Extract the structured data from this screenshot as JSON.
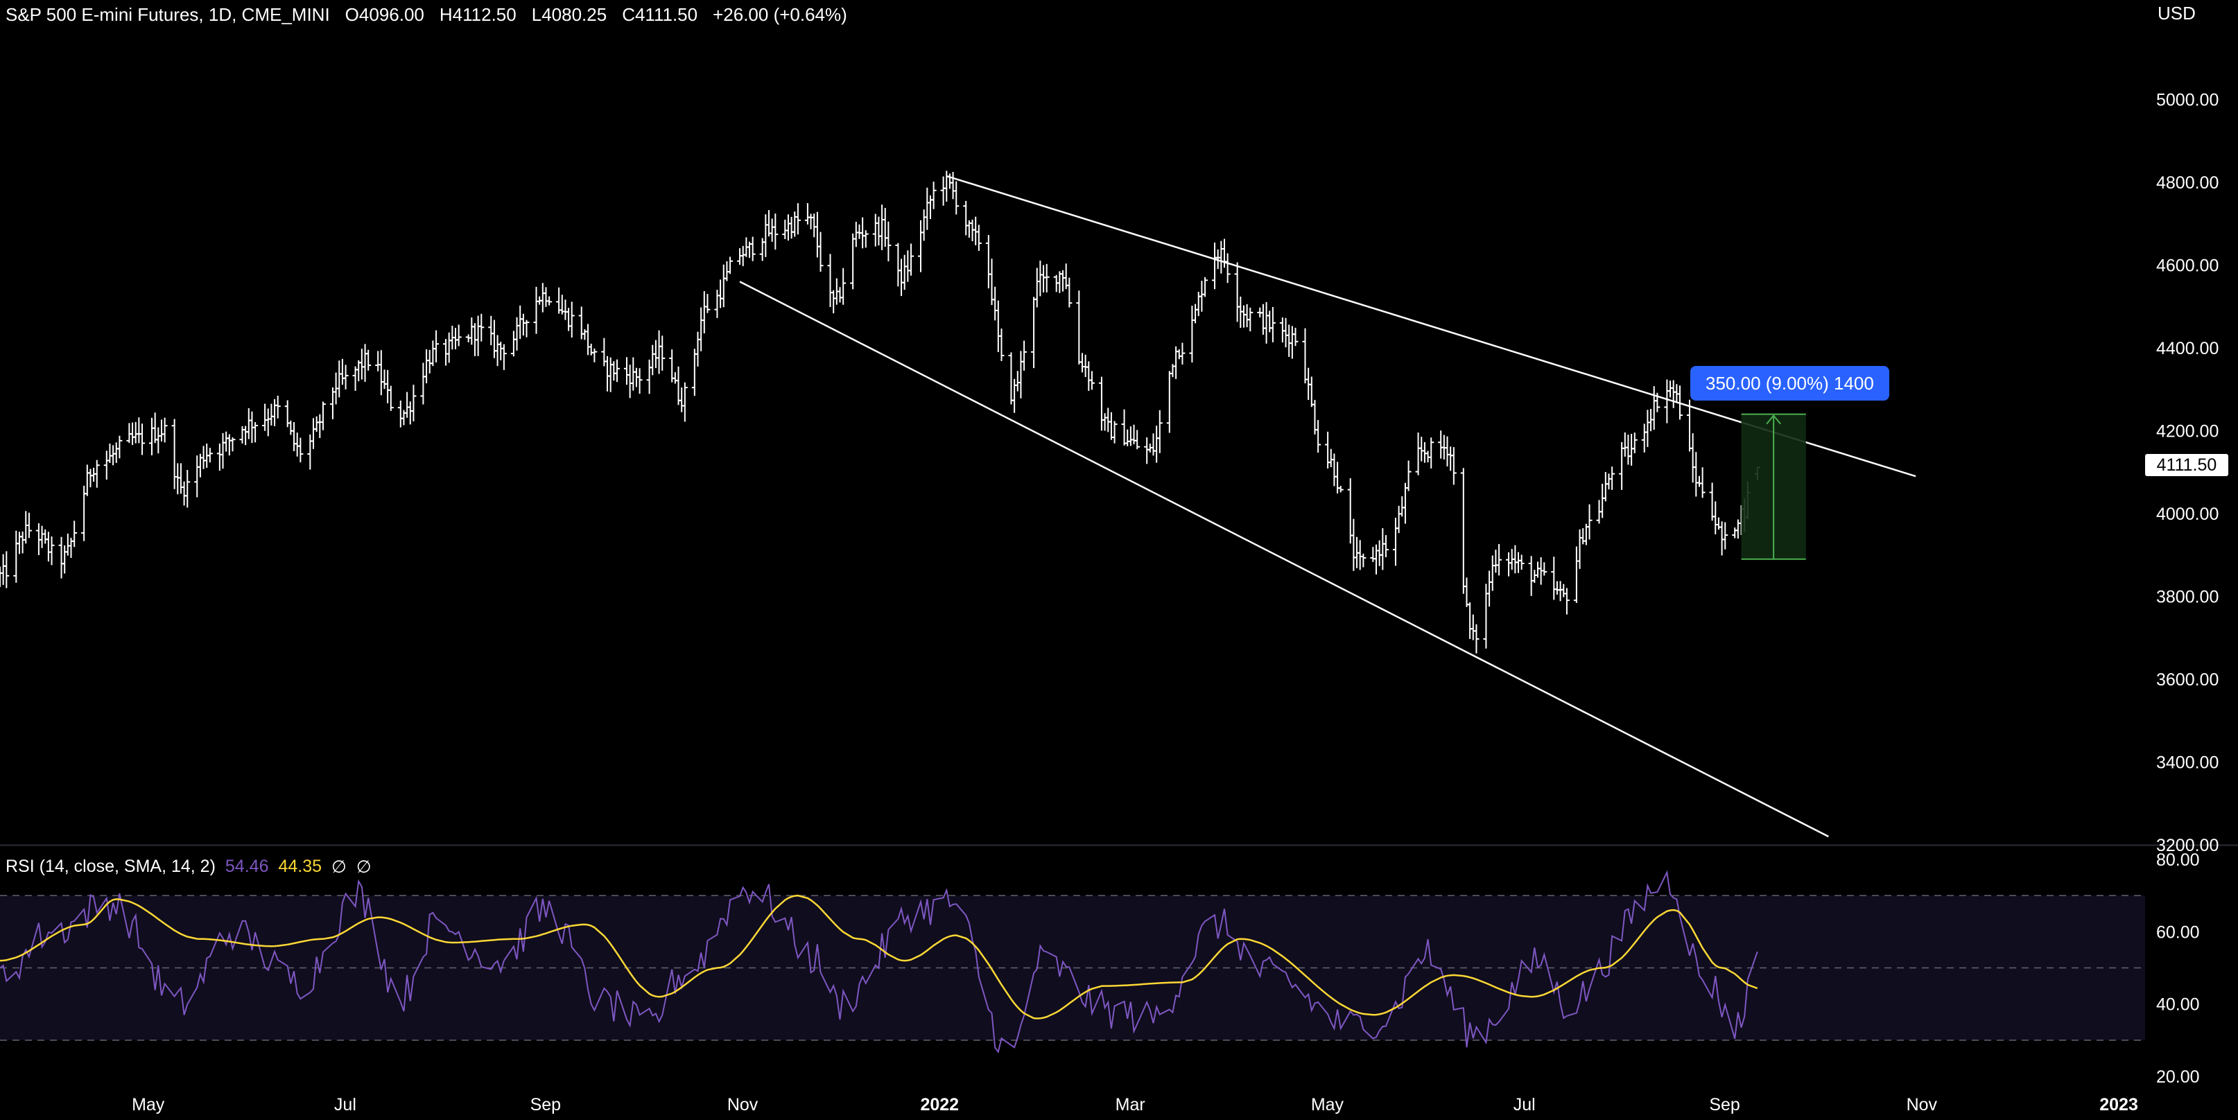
{
  "header": {
    "symbol": "S&P 500 E-mini Futures, 1D, CME_MINI",
    "open": "O4096.00",
    "high": "H4112.50",
    "low": "L4080.25",
    "close": "C4111.50",
    "change": "+26.00 (+0.64%)"
  },
  "currency": "USD",
  "last_price": "4111.50",
  "measure": {
    "label": "350.00 (9.00%) 1400",
    "color": "#2962ff",
    "fill": "#0f2a12",
    "stroke": "#4caf50"
  },
  "rsi_header": {
    "title": "RSI (14, close, SMA, 14, 2)",
    "rsi_value": "54.46",
    "sma_value": "44.35",
    "na1": "∅",
    "na2": "∅",
    "rsi_color": "#7e57c2",
    "sma_color": "#fdd835"
  },
  "chart_data": [
    {
      "type": "bar",
      "subtype": "ohlc",
      "ylim": [
        3200,
        5200
      ],
      "y_ticks": [
        "3200.00",
        "3400.00",
        "3600.00",
        "3800.00",
        "4000.00",
        "4200.00",
        "4400.00",
        "4600.00",
        "4800.00",
        "5000.00"
      ],
      "x_ticks": [
        "May",
        "Jul",
        "Sep",
        "Nov",
        "2022",
        "Mar",
        "May",
        "Jul",
        "Sep",
        "Nov",
        "2023"
      ],
      "xlim": [
        "2021-03-17",
        "2023-01-10"
      ],
      "price_anchors": [
        [
          "2021-03-17",
          3850
        ],
        [
          "2021-03-26",
          3960
        ],
        [
          "2021-04-05",
          3890
        ],
        [
          "2021-04-16",
          4120
        ],
        [
          "2021-04-28",
          4180
        ],
        [
          "2021-05-07",
          4200
        ],
        [
          "2021-05-12",
          4060
        ],
        [
          "2021-05-21",
          4150
        ],
        [
          "2021-06-04",
          4220
        ],
        [
          "2021-06-11",
          4250
        ],
        [
          "2021-06-18",
          4150
        ],
        [
          "2021-07-01",
          4320
        ],
        [
          "2021-07-09",
          4370
        ],
        [
          "2021-07-19",
          4240
        ],
        [
          "2021-07-30",
          4390
        ],
        [
          "2021-08-12",
          4440
        ],
        [
          "2021-08-19",
          4400
        ],
        [
          "2021-09-02",
          4530
        ],
        [
          "2021-09-10",
          4470
        ],
        [
          "2021-09-20",
          4350
        ],
        [
          "2021-10-01",
          4330
        ],
        [
          "2021-10-08",
          4390
        ],
        [
          "2021-10-14",
          4280
        ],
        [
          "2021-10-22",
          4500
        ],
        [
          "2021-11-02",
          4630
        ],
        [
          "2021-11-10",
          4680
        ],
        [
          "2021-11-22",
          4710
        ],
        [
          "2021-11-30",
          4510
        ],
        [
          "2021-12-08",
          4680
        ],
        [
          "2021-12-15",
          4690
        ],
        [
          "2021-12-20",
          4570
        ],
        [
          "2022-01-03",
          4800
        ],
        [
          "2022-01-14",
          4660
        ],
        [
          "2022-01-24",
          4290
        ],
        [
          "2022-02-02",
          4560
        ],
        [
          "2022-02-09",
          4580
        ],
        [
          "2022-02-14",
          4370
        ],
        [
          "2022-02-24",
          4200
        ],
        [
          "2022-03-08",
          4150
        ],
        [
          "2022-03-17",
          4400
        ],
        [
          "2022-03-29",
          4630
        ],
        [
          "2022-04-07",
          4480
        ],
        [
          "2022-04-21",
          4430
        ],
        [
          "2022-05-02",
          4130
        ],
        [
          "2022-05-12",
          3880
        ],
        [
          "2022-05-20",
          3920
        ],
        [
          "2022-05-31",
          4150
        ],
        [
          "2022-06-08",
          4160
        ],
        [
          "2022-06-16",
          3700
        ],
        [
          "2022-06-24",
          3900
        ],
        [
          "2022-07-06",
          3850
        ],
        [
          "2022-07-14",
          3800
        ],
        [
          "2022-07-22",
          3980
        ],
        [
          "2022-08-01",
          4140
        ],
        [
          "2022-08-16",
          4300
        ],
        [
          "2022-08-26",
          4060
        ],
        [
          "2022-09-02",
          3930
        ],
        [
          "2022-09-07",
          4000
        ],
        [
          "2022-09-12",
          4111.5
        ]
      ],
      "last_bar": {
        "open": 4096.0,
        "high": 4112.5,
        "low": 4080.25,
        "close": 4111.5
      },
      "trendlines": [
        {
          "name": "upper-wedge-line",
          "from": [
            "2022-01-04",
            4815
          ],
          "to": [
            "2022-10-31",
            4090
          ]
        },
        {
          "name": "lower-wedge-line",
          "from": [
            "2021-11-01",
            4560
          ],
          "to": [
            "2022-10-04",
            3220
          ]
        }
      ],
      "measure_range": {
        "x_from": "2022-09-07",
        "x_to": "2022-09-27",
        "y_from": 3890,
        "y_to": 4240
      }
    },
    {
      "type": "line",
      "title": "RSI (14, close, SMA, 14, 2)",
      "ylim": [
        20,
        80
      ],
      "y_ticks": [
        "20.00",
        "40.00",
        "60.00",
        "80.00"
      ],
      "bands": [
        70,
        50,
        30
      ],
      "series": [
        {
          "name": "RSI",
          "color": "#7e57c2",
          "anchors": [
            [
              "2021-03-17",
              48
            ],
            [
              "2021-04-02",
              60
            ],
            [
              "2021-04-20",
              68
            ],
            [
              "2021-05-12",
              40
            ],
            [
              "2021-05-28",
              60
            ],
            [
              "2021-06-18",
              46
            ],
            [
              "2021-07-06",
              70
            ],
            [
              "2021-07-19",
              42
            ],
            [
              "2021-07-30",
              62
            ],
            [
              "2021-08-19",
              52
            ],
            [
              "2021-09-02",
              66
            ],
            [
              "2021-09-20",
              40
            ],
            [
              "2021-10-04",
              34
            ],
            [
              "2021-10-14",
              48
            ],
            [
              "2021-11-04",
              72
            ],
            [
              "2021-11-26",
              52
            ],
            [
              "2021-12-01",
              40
            ],
            [
              "2021-12-27",
              66
            ],
            [
              "2022-01-05",
              68
            ],
            [
              "2022-01-24",
              26
            ],
            [
              "2022-02-02",
              52
            ],
            [
              "2022-02-24",
              38
            ],
            [
              "2022-03-08",
              36
            ],
            [
              "2022-03-29",
              62
            ],
            [
              "2022-04-14",
              48
            ],
            [
              "2022-05-09",
              34
            ],
            [
              "2022-05-20",
              36
            ],
            [
              "2022-06-01",
              54
            ],
            [
              "2022-06-16",
              32
            ],
            [
              "2022-07-08",
              52
            ],
            [
              "2022-07-14",
              40
            ],
            [
              "2022-08-16",
              74
            ],
            [
              "2022-08-26",
              48
            ],
            [
              "2022-09-06",
              34
            ],
            [
              "2022-09-12",
              54.46
            ]
          ]
        },
        {
          "name": "RSI-based MA",
          "color": "#fdd835",
          "anchors": [
            [
              "2021-03-17",
              52
            ],
            [
              "2021-04-12",
              62
            ],
            [
              "2021-04-22",
              69
            ],
            [
              "2021-05-18",
              58
            ],
            [
              "2021-06-09",
              56
            ],
            [
              "2021-06-25",
              58
            ],
            [
              "2021-07-12",
              64
            ],
            [
              "2021-08-04",
              57
            ],
            [
              "2021-08-24",
              58
            ],
            [
              "2021-09-14",
              62
            ],
            [
              "2021-10-07",
              42
            ],
            [
              "2021-10-25",
              50
            ],
            [
              "2021-11-19",
              70
            ],
            [
              "2021-12-08",
              58
            ],
            [
              "2021-12-22",
              52
            ],
            [
              "2022-01-07",
              59
            ],
            [
              "2022-02-01",
              36
            ],
            [
              "2022-02-22",
              45
            ],
            [
              "2022-03-18",
              46
            ],
            [
              "2022-04-05",
              58
            ],
            [
              "2022-05-16",
              37
            ],
            [
              "2022-06-10",
              48
            ],
            [
              "2022-07-04",
              42
            ],
            [
              "2022-07-26",
              50
            ],
            [
              "2022-08-17",
              66
            ],
            [
              "2022-09-01",
              50
            ],
            [
              "2022-09-12",
              44.35
            ]
          ]
        }
      ]
    }
  ]
}
